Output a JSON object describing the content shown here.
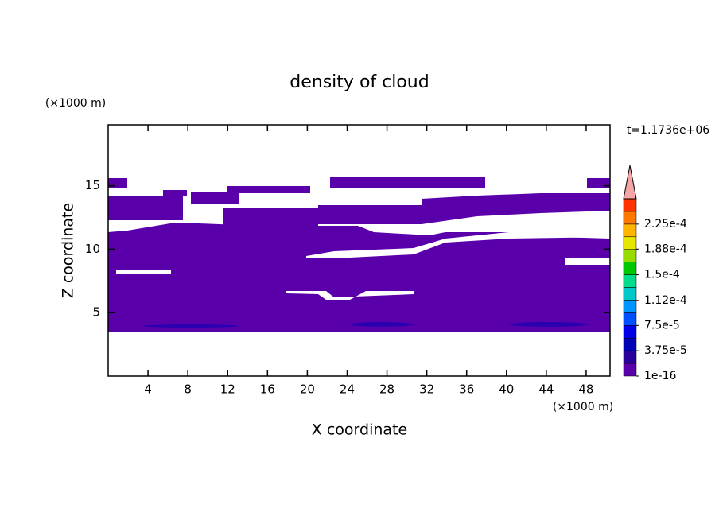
{
  "chart_data": {
    "type": "contour",
    "title": "density of cloud",
    "x_label": "X coordinate",
    "y_label": "Z coordinate",
    "x_unit": "(×1000 m)",
    "y_unit": "(×1000 m)",
    "annotation": "t=1.1736e+06",
    "xlim": [
      0,
      50.4
    ],
    "xticks": [
      4,
      8,
      12,
      16,
      20,
      24,
      28,
      32,
      36,
      40,
      44,
      48
    ],
    "ylim": [
      0,
      19.8
    ],
    "yticks": [
      5,
      10,
      15
    ],
    "colorbar": {
      "ticks": [
        {
          "value": 1e-16,
          "label": "1e-16"
        },
        {
          "value": 3.75e-05,
          "label": "3.75e-5"
        },
        {
          "value": 7.5e-05,
          "label": "7.5e-5"
        },
        {
          "value": 0.000112,
          "label": "1.12e-4"
        },
        {
          "value": 0.00015,
          "label": "1.5e-4"
        },
        {
          "value": 0.000188,
          "label": "1.88e-4"
        },
        {
          "value": 0.000225,
          "label": "2.25e-4"
        }
      ],
      "colors": [
        "#5a00aa",
        "#28009a",
        "#0000b4",
        "#0000e6",
        "#0050ff",
        "#0096ff",
        "#00c8c8",
        "#00dc8c",
        "#00c800",
        "#96dc00",
        "#e6e600",
        "#ffb400",
        "#ff7800",
        "#ff3200"
      ],
      "extend_color": "#f4a6a6"
    }
  }
}
